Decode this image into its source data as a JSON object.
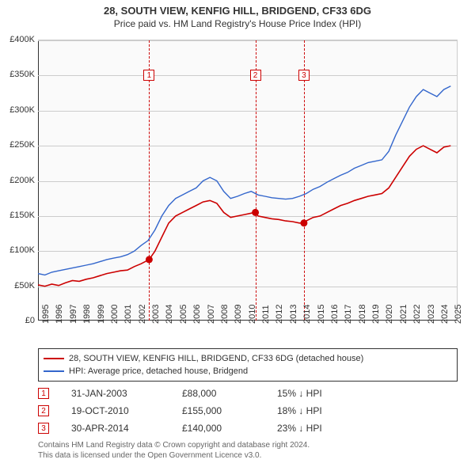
{
  "title_line1": "28, SOUTH VIEW, KENFIG HILL, BRIDGEND, CF33 6DG",
  "title_line2": "Price paid vs. HM Land Registry's House Price Index (HPI)",
  "chart": {
    "type": "line",
    "background_color": "#fafafa",
    "grid_color": "#cccccc",
    "axis_color": "#333333",
    "text_color": "#333333",
    "font_size": 11,
    "xlim": [
      1995,
      2025.5
    ],
    "ylim": [
      0,
      400000
    ],
    "ytick_step": 50000,
    "ytick_labels": [
      "£0",
      "£50K",
      "£100K",
      "£150K",
      "£200K",
      "£250K",
      "£300K",
      "£350K",
      "£400K"
    ],
    "xticks": [
      1995,
      1996,
      1997,
      1998,
      1999,
      2000,
      2001,
      2002,
      2003,
      2004,
      2005,
      2006,
      2007,
      2008,
      2009,
      2010,
      2011,
      2012,
      2013,
      2014,
      2015,
      2016,
      2017,
      2018,
      2019,
      2020,
      2021,
      2022,
      2023,
      2024,
      2025
    ],
    "series": [
      {
        "name": "28, SOUTH VIEW, KENFIG HILL, BRIDGEND, CF33 6DG (detached house)",
        "color": "#cc0000",
        "line_width": 1.6,
        "points": [
          [
            1995.0,
            52000
          ],
          [
            1995.5,
            50000
          ],
          [
            1996.0,
            53000
          ],
          [
            1996.5,
            51000
          ],
          [
            1997.0,
            55000
          ],
          [
            1997.5,
            58000
          ],
          [
            1998.0,
            57000
          ],
          [
            1998.5,
            60000
          ],
          [
            1999.0,
            62000
          ],
          [
            1999.5,
            65000
          ],
          [
            2000.0,
            68000
          ],
          [
            2000.5,
            70000
          ],
          [
            2001.0,
            72000
          ],
          [
            2001.5,
            73000
          ],
          [
            2002.0,
            78000
          ],
          [
            2002.5,
            82000
          ],
          [
            2003.08,
            88000
          ],
          [
            2003.5,
            100000
          ],
          [
            2004.0,
            120000
          ],
          [
            2004.5,
            140000
          ],
          [
            2005.0,
            150000
          ],
          [
            2005.5,
            155000
          ],
          [
            2006.0,
            160000
          ],
          [
            2006.5,
            165000
          ],
          [
            2007.0,
            170000
          ],
          [
            2007.5,
            172000
          ],
          [
            2008.0,
            168000
          ],
          [
            2008.5,
            155000
          ],
          [
            2009.0,
            148000
          ],
          [
            2009.5,
            150000
          ],
          [
            2010.0,
            152000
          ],
          [
            2010.5,
            154000
          ],
          [
            2010.8,
            155000
          ],
          [
            2011.0,
            150000
          ],
          [
            2011.5,
            148000
          ],
          [
            2012.0,
            146000
          ],
          [
            2012.5,
            145000
          ],
          [
            2013.0,
            143000
          ],
          [
            2013.5,
            142000
          ],
          [
            2014.0,
            140000
          ],
          [
            2014.33,
            140000
          ],
          [
            2014.5,
            143000
          ],
          [
            2015.0,
            148000
          ],
          [
            2015.5,
            150000
          ],
          [
            2016.0,
            155000
          ],
          [
            2016.5,
            160000
          ],
          [
            2017.0,
            165000
          ],
          [
            2017.5,
            168000
          ],
          [
            2018.0,
            172000
          ],
          [
            2018.5,
            175000
          ],
          [
            2019.0,
            178000
          ],
          [
            2019.5,
            180000
          ],
          [
            2020.0,
            182000
          ],
          [
            2020.5,
            190000
          ],
          [
            2021.0,
            205000
          ],
          [
            2021.5,
            220000
          ],
          [
            2022.0,
            235000
          ],
          [
            2022.5,
            245000
          ],
          [
            2023.0,
            250000
          ],
          [
            2023.5,
            245000
          ],
          [
            2024.0,
            240000
          ],
          [
            2024.5,
            248000
          ],
          [
            2025.0,
            250000
          ]
        ]
      },
      {
        "name": "HPI: Average price, detached house, Bridgend",
        "color": "#3366cc",
        "line_width": 1.4,
        "points": [
          [
            1995.0,
            68000
          ],
          [
            1995.5,
            66000
          ],
          [
            1996.0,
            70000
          ],
          [
            1996.5,
            72000
          ],
          [
            1997.0,
            74000
          ],
          [
            1997.5,
            76000
          ],
          [
            1998.0,
            78000
          ],
          [
            1998.5,
            80000
          ],
          [
            1999.0,
            82000
          ],
          [
            1999.5,
            85000
          ],
          [
            2000.0,
            88000
          ],
          [
            2000.5,
            90000
          ],
          [
            2001.0,
            92000
          ],
          [
            2001.5,
            95000
          ],
          [
            2002.0,
            100000
          ],
          [
            2002.5,
            108000
          ],
          [
            2003.0,
            115000
          ],
          [
            2003.5,
            130000
          ],
          [
            2004.0,
            150000
          ],
          [
            2004.5,
            165000
          ],
          [
            2005.0,
            175000
          ],
          [
            2005.5,
            180000
          ],
          [
            2006.0,
            185000
          ],
          [
            2006.5,
            190000
          ],
          [
            2007.0,
            200000
          ],
          [
            2007.5,
            205000
          ],
          [
            2008.0,
            200000
          ],
          [
            2008.5,
            185000
          ],
          [
            2009.0,
            175000
          ],
          [
            2009.5,
            178000
          ],
          [
            2010.0,
            182000
          ],
          [
            2010.5,
            185000
          ],
          [
            2011.0,
            180000
          ],
          [
            2011.5,
            178000
          ],
          [
            2012.0,
            176000
          ],
          [
            2012.5,
            175000
          ],
          [
            2013.0,
            174000
          ],
          [
            2013.5,
            175000
          ],
          [
            2014.0,
            178000
          ],
          [
            2014.5,
            182000
          ],
          [
            2015.0,
            188000
          ],
          [
            2015.5,
            192000
          ],
          [
            2016.0,
            198000
          ],
          [
            2016.5,
            203000
          ],
          [
            2017.0,
            208000
          ],
          [
            2017.5,
            212000
          ],
          [
            2018.0,
            218000
          ],
          [
            2018.5,
            222000
          ],
          [
            2019.0,
            226000
          ],
          [
            2019.5,
            228000
          ],
          [
            2020.0,
            230000
          ],
          [
            2020.5,
            242000
          ],
          [
            2021.0,
            265000
          ],
          [
            2021.5,
            285000
          ],
          [
            2022.0,
            305000
          ],
          [
            2022.5,
            320000
          ],
          [
            2023.0,
            330000
          ],
          [
            2023.5,
            325000
          ],
          [
            2024.0,
            320000
          ],
          [
            2024.5,
            330000
          ],
          [
            2025.0,
            335000
          ]
        ]
      }
    ],
    "sale_markers": [
      {
        "idx": "1",
        "x": 2003.08,
        "y": 88000
      },
      {
        "idx": "2",
        "x": 2010.8,
        "y": 155000
      },
      {
        "idx": "3",
        "x": 2014.33,
        "y": 140000
      }
    ],
    "marker_color": "#cc0000",
    "marker_label_box_top_y": 350000
  },
  "legend": {
    "rows": [
      {
        "color": "#cc0000",
        "label": "28, SOUTH VIEW, KENFIG HILL, BRIDGEND, CF33 6DG (detached house)"
      },
      {
        "color": "#3366cc",
        "label": "HPI: Average price, detached house, Bridgend"
      }
    ]
  },
  "sales": [
    {
      "idx": "1",
      "date": "31-JAN-2003",
      "price": "£88,000",
      "delta": "15% ↓ HPI"
    },
    {
      "idx": "2",
      "date": "19-OCT-2010",
      "price": "£155,000",
      "delta": "18% ↓ HPI"
    },
    {
      "idx": "3",
      "date": "30-APR-2014",
      "price": "£140,000",
      "delta": "23% ↓ HPI"
    }
  ],
  "footer_line1": "Contains HM Land Registry data © Crown copyright and database right 2024.",
  "footer_line2": "This data is licensed under the Open Government Licence v3.0."
}
